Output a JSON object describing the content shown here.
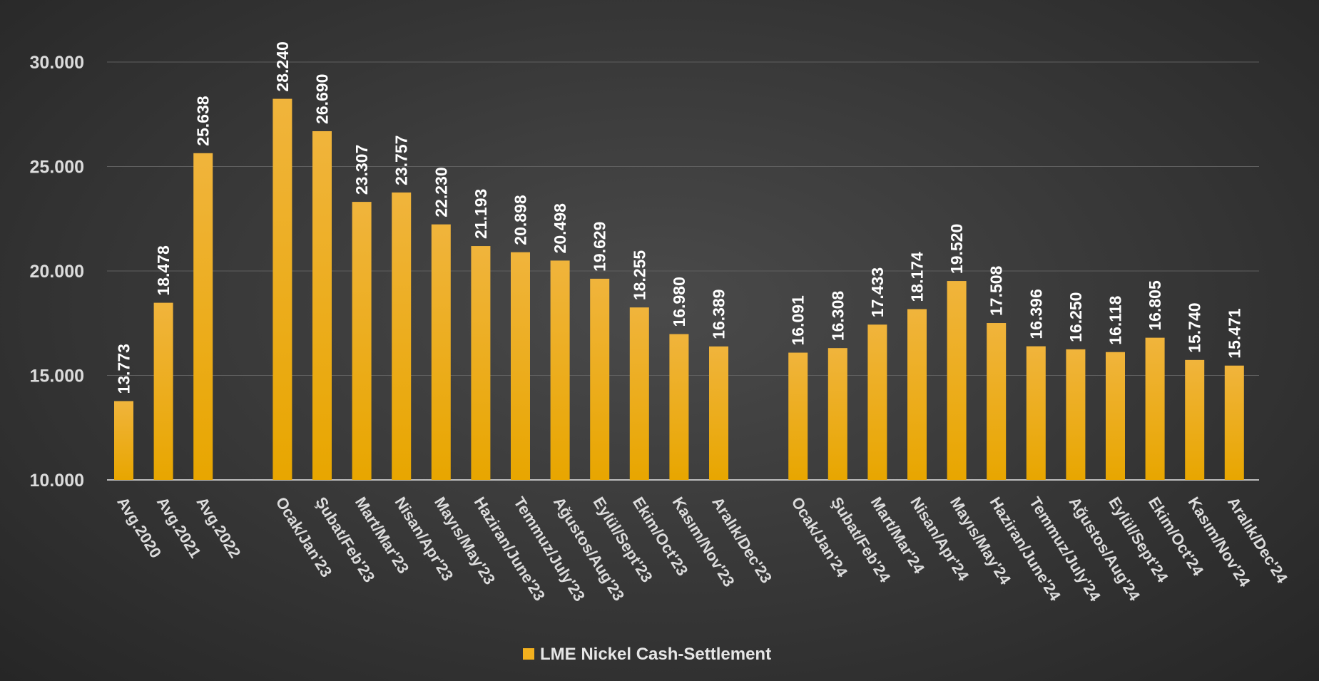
{
  "chart_data": {
    "type": "bar",
    "title": "",
    "xlabel": "",
    "ylabel": "",
    "ylim": [
      10000,
      31000
    ],
    "yticks": [
      10000,
      15000,
      20000,
      25000,
      30000
    ],
    "ytick_labels": [
      "10.000",
      "15.000",
      "20.000",
      "25.000",
      "30.000"
    ],
    "grid": true,
    "legend_position": "bottom",
    "bar_color": "#F2B01E",
    "categories": [
      "Avg.2020",
      "Avg.2021",
      "Avg.2022",
      "",
      "Ocak/Jan'23",
      "Şubat/Feb'23",
      "Mart/Mar'23",
      "Nisan/Apr'23",
      "Mayıs/May'23",
      "Haziran/June'23",
      "Temmuz/July'23",
      "Ağustos/Aug'23",
      "Eylül/Sept'23",
      "Ekim/Oct'23",
      "Kasım/Nov'23",
      "Aralık/Dec'23",
      "",
      "Ocak/Jan'24",
      "Şubat/Feb'24",
      "Mart/Mar'24",
      "Nisan/Apr'24",
      "Mayıs/May'24",
      "Haziran/June'24",
      "Temmuz/July'24",
      "Ağustos/Aug'24",
      "Eylül/Sept'24",
      "Ekim/Oct'24",
      "Kasım/Nov'24",
      "Aralık/Dec'24"
    ],
    "series": [
      {
        "name": "LME Nickel Cash-Settlement",
        "values": [
          13773,
          18478,
          25638,
          null,
          28240,
          26690,
          23307,
          23757,
          22230,
          21193,
          20898,
          20498,
          19629,
          18255,
          16980,
          16389,
          null,
          16091,
          16308,
          17433,
          18174,
          19520,
          17508,
          16396,
          16250,
          16118,
          16805,
          15740,
          15471
        ],
        "data_labels": [
          "13.773",
          "18.478",
          "25.638",
          "",
          "28.240",
          "26.690",
          "23.307",
          "23.757",
          "22.230",
          "21.193",
          "20.898",
          "20.498",
          "19.629",
          "18.255",
          "16.980",
          "16.389",
          "",
          "16.091",
          "16.308",
          "17.433",
          "18.174",
          "19.520",
          "17.508",
          "16.396",
          "16.250",
          "16.118",
          "16.805",
          "15.740",
          "15.471"
        ]
      }
    ]
  }
}
